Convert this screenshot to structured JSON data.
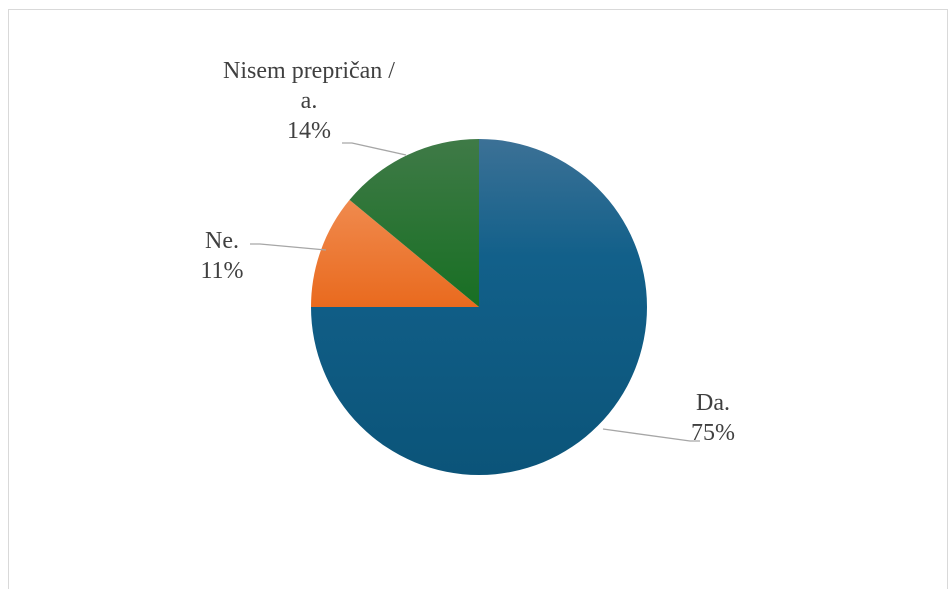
{
  "chart_data": {
    "type": "pie",
    "start_angle_deg": 0,
    "direction": "clockwise",
    "slices": [
      {
        "name": "Da.",
        "value": 75,
        "value_label": "75%",
        "color": "#0f5a82"
      },
      {
        "name": "Ne.",
        "value": 11,
        "value_label": "11%",
        "color": "#f07a2a"
      },
      {
        "name": "Nisem prepričan / a.",
        "name_lines": [
          "Nisem prepričan /",
          "a."
        ],
        "value": 14,
        "value_label": "14%",
        "color": "#1f6b2a"
      }
    ],
    "legend": "none",
    "data_labels": "category and percentage, outside with leader lines"
  }
}
